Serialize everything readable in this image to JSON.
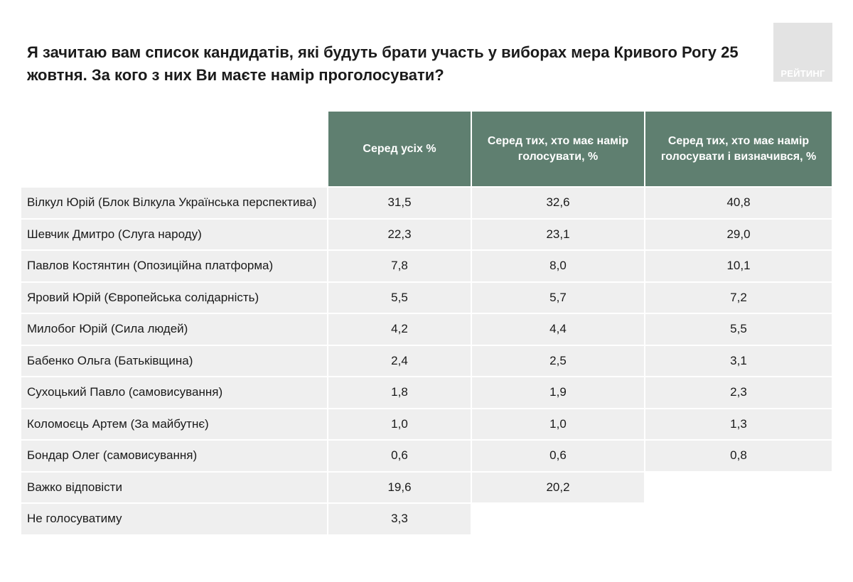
{
  "title": "Я зачитаю вам список кандидатів, які будуть брати участь у виборах мера Кривого Рогу 25 жовтня. За кого з них Ви маєте намір проголосувати?",
  "logo_text": "РЕЙТИНГ",
  "colors": {
    "header_bg": "#5f7f70",
    "header_text": "#ffffff",
    "row_bg": "#efefef",
    "logo_bg": "#e3e3e3"
  },
  "chart_data": {
    "type": "table",
    "title": "Я зачитаю вам список кандидатів, які будуть брати участь у виборах мера Кривого Рогу 25 жовтня. За кого з них Ви маєте намір проголосувати?",
    "columns": [
      "Серед усіх %",
      "Серед тих, хто має намір голосувати, %",
      "Серед тих, хто має намір голосувати і визначився, %"
    ],
    "rows": [
      {
        "label": "Вілкул Юрій (Блок Вілкула Українська перспектива)",
        "values": [
          "31,5",
          "32,6",
          "40,8"
        ]
      },
      {
        "label": "Шевчик Дмитро (Слуга народу)",
        "values": [
          "22,3",
          "23,1",
          "29,0"
        ]
      },
      {
        "label": "Павлов Костянтин (Опозиційна платформа)",
        "values": [
          "7,8",
          "8,0",
          "10,1"
        ]
      },
      {
        "label": "Яровий Юрій (Європейська солідарність)",
        "values": [
          "5,5",
          "5,7",
          "7,2"
        ]
      },
      {
        "label": "Милобог Юрій (Сила людей)",
        "values": [
          "4,2",
          "4,4",
          "5,5"
        ]
      },
      {
        "label": "Бабенко Ольга (Батьківщина)",
        "values": [
          "2,4",
          "2,5",
          "3,1"
        ]
      },
      {
        "label": "Сухоцький Павло (самовисування)",
        "values": [
          "1,8",
          "1,9",
          "2,3"
        ]
      },
      {
        "label": "Коломоєць Артем (За майбутнє)",
        "values": [
          "1,0",
          "1,0",
          "1,3"
        ]
      },
      {
        "label": "Бондар Олег (самовисування)",
        "values": [
          "0,6",
          "0,6",
          "0,8"
        ]
      },
      {
        "label": "Важко відповісти",
        "values": [
          "19,6",
          "20,2"
        ]
      },
      {
        "label": "Не голосуватиму",
        "values": [
          "3,3"
        ]
      }
    ]
  }
}
